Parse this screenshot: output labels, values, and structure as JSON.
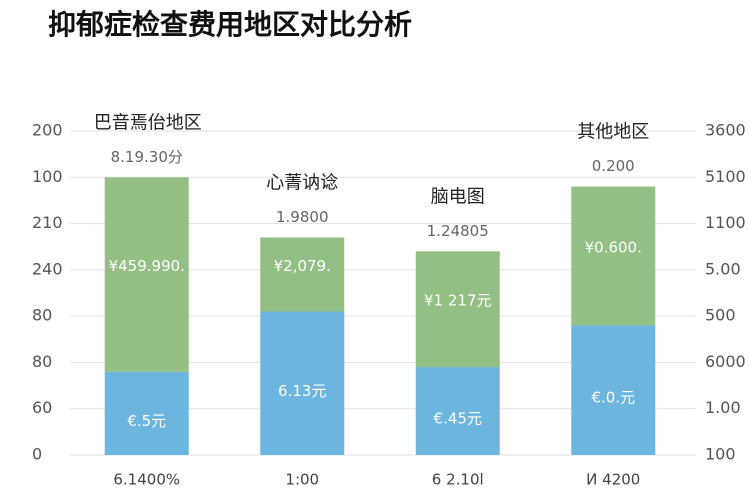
{
  "chart_data": {
    "type": "stacked_bar",
    "title": "抑郁症检查费用地区对比分析",
    "categories": [
      "巴音焉佁地区",
      "心菁讷谂",
      "脑电图",
      "其他地区"
    ],
    "series": [
      {
        "color": "#6cb5de",
        "values": [
          1.8,
          3.1,
          1.9,
          2.8
        ],
        "value_labels": [
          "€.5元",
          "6.13元",
          "€.45元",
          "€.0.元"
        ]
      },
      {
        "color": "#93bf85",
        "values": [
          4.2,
          1.6,
          2.5,
          3.0
        ],
        "value_labels": [
          "¥459.990.",
          "¥2,079.",
          "¥1 217元",
          "¥0.600."
        ]
      }
    ],
    "top_labels": [
      "8.19.30分",
      "1.9800",
      "1.24805",
      "0.200"
    ],
    "bottom_labels": [
      "6.1400%",
      "1:00",
      "6 2.10l",
      "И 4200"
    ],
    "ylim": [
      0,
      7
    ],
    "yticks": [
      {
        "value": 0,
        "label": "0"
      },
      {
        "value": 1,
        "label": "60"
      },
      {
        "value": 2,
        "label": "80"
      },
      {
        "value": 3,
        "label": "80"
      },
      {
        "value": 4,
        "label": "240"
      },
      {
        "value": 5,
        "label": "210"
      },
      {
        "value": 6,
        "label": "100"
      },
      {
        "value": 7,
        "label": "200"
      }
    ],
    "y2lim": [
      0,
      7
    ],
    "y2ticks": [
      {
        "value": 0,
        "label": "100"
      },
      {
        "value": 1,
        "label": "1.00"
      },
      {
        "value": 2,
        "label": "6000"
      },
      {
        "value": 3,
        "label": "500"
      },
      {
        "value": 4,
        "label": "5.00"
      },
      {
        "value": 5,
        "label": "1100"
      },
      {
        "value": 6,
        "label": "5100"
      },
      {
        "value": 7,
        "label": "3600"
      }
    ],
    "grid": true
  }
}
